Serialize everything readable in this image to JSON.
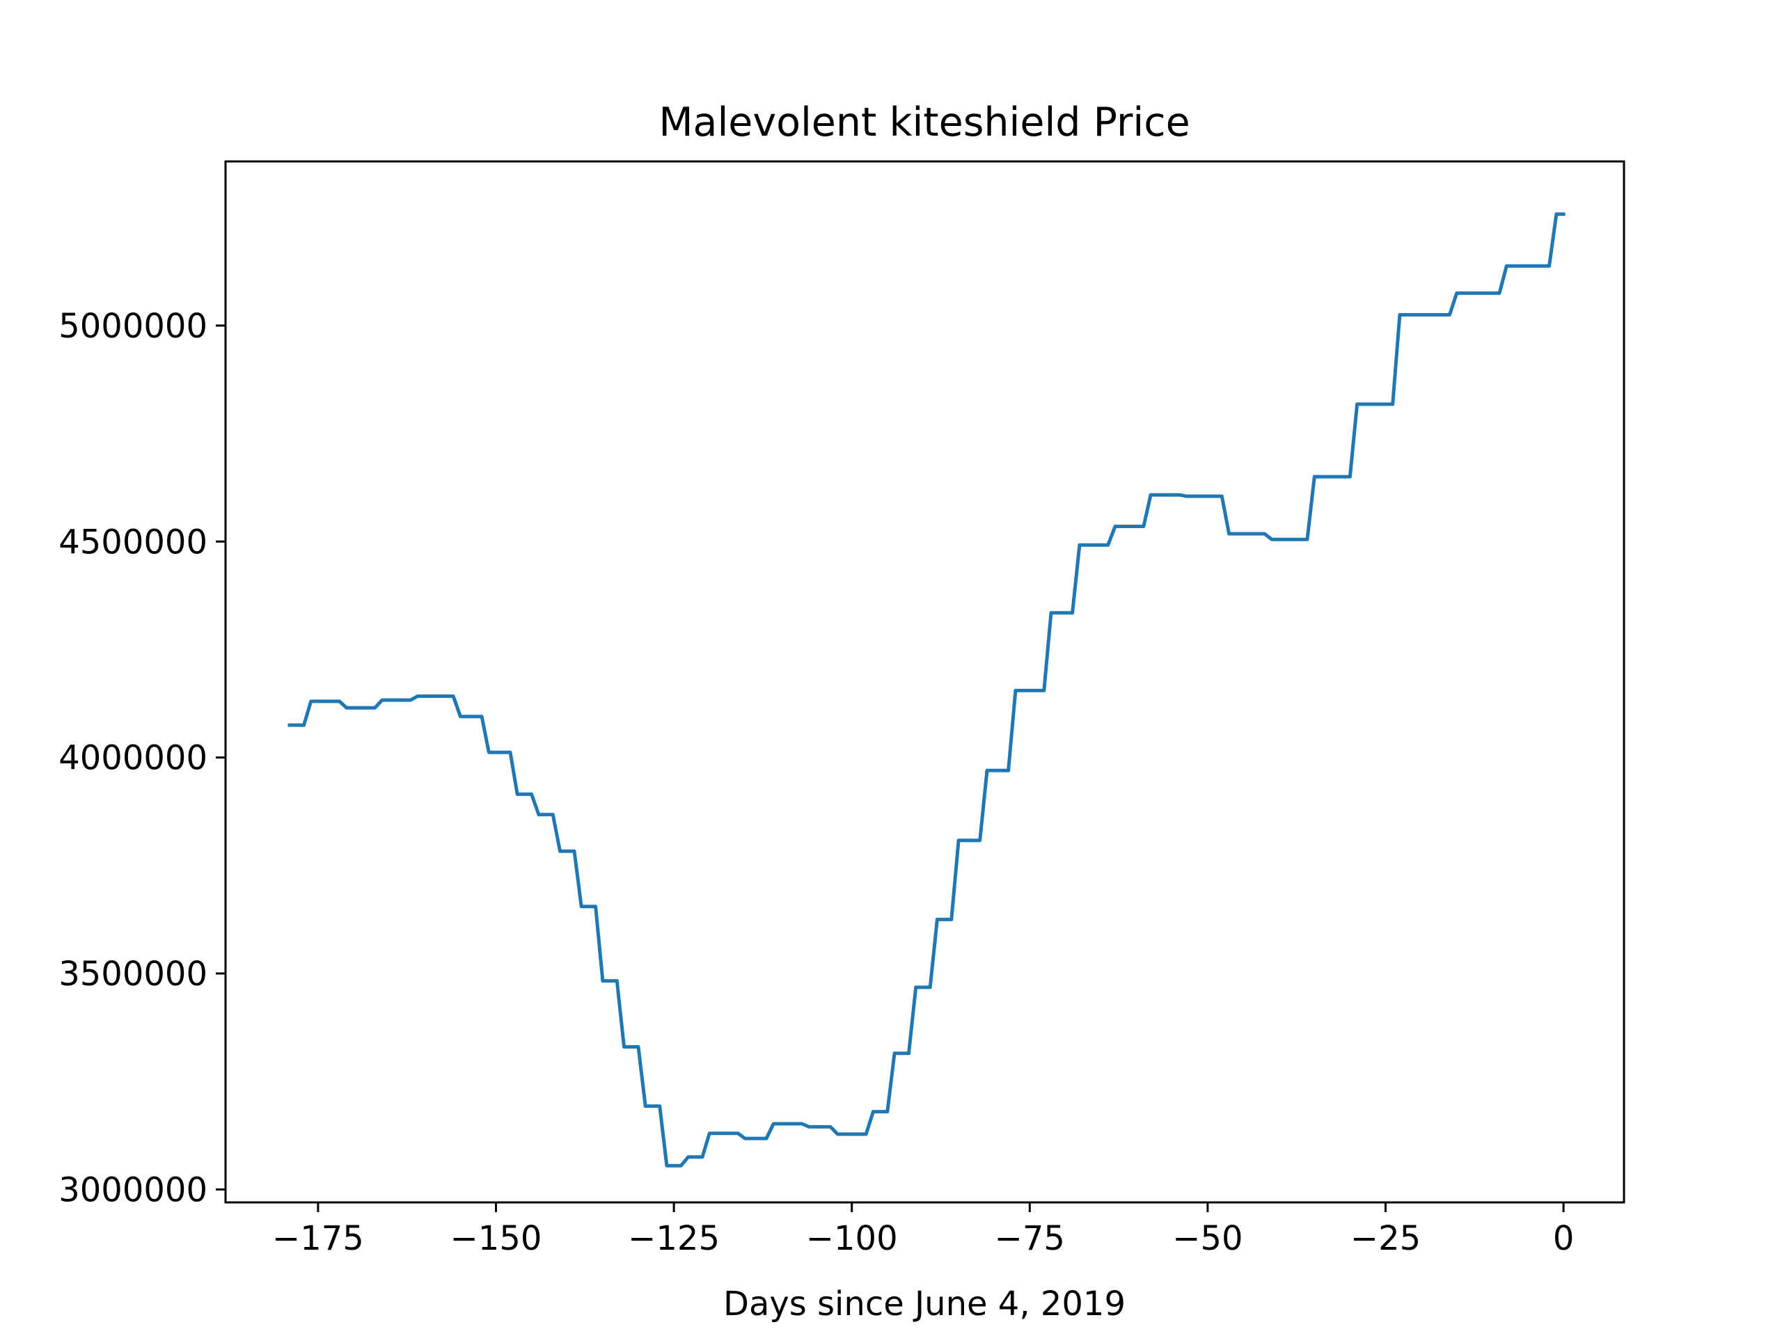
{
  "chart_data": {
    "type": "line",
    "title": "Malevolent kiteshield Price",
    "xlabel": "Days since June 4, 2019",
    "ylabel": "",
    "xlim": [
      -188,
      8.5
    ],
    "ylim": [
      2970000,
      5380000
    ],
    "xticks": [
      -175,
      -150,
      -125,
      -100,
      -75,
      -50,
      -25,
      0
    ],
    "xtick_labels": [
      "−175",
      "−150",
      "−125",
      "−100",
      "−75",
      "−50",
      "−25",
      "0"
    ],
    "yticks": [
      3000000,
      3500000,
      4000000,
      4500000,
      5000000
    ],
    "ytick_labels": [
      "3000000",
      "3500000",
      "4000000",
      "4500000",
      "5000000"
    ],
    "grid": false,
    "legend": "none",
    "series": [
      {
        "color": "#1f77b4",
        "x": [
          -179,
          -177,
          -176,
          -172,
          -171,
          -167,
          -166,
          -162,
          -161,
          -156,
          -155,
          -152,
          -151,
          -148,
          -147,
          -145,
          -144,
          -142,
          -141,
          -139,
          -138,
          -136,
          -135,
          -133,
          -132,
          -130,
          -129,
          -127,
          -126,
          -124,
          -123,
          -121,
          -120,
          -116,
          -115,
          -112,
          -111,
          -107,
          -106,
          -103,
          -102,
          -98,
          -97,
          -95,
          -94,
          -92,
          -91,
          -89,
          -88,
          -86,
          -85,
          -82,
          -81,
          -78,
          -77,
          -73,
          -72,
          -69,
          -68,
          -64,
          -63,
          -59,
          -58,
          -54,
          -53,
          -48,
          -47,
          -42,
          -41,
          -36,
          -35,
          -30,
          -29,
          -24,
          -23,
          -16,
          -15,
          -9,
          -8,
          -2,
          -1,
          0
        ],
        "y": [
          4075000,
          4075000,
          4130000,
          4130000,
          4115000,
          4115000,
          4133000,
          4133000,
          4142000,
          4142000,
          4095000,
          4095000,
          4012000,
          4012000,
          3915000,
          3915000,
          3868000,
          3868000,
          3783000,
          3783000,
          3655000,
          3655000,
          3483000,
          3483000,
          3330000,
          3330000,
          3193000,
          3193000,
          3055000,
          3055000,
          3075000,
          3075000,
          3130000,
          3130000,
          3118000,
          3118000,
          3152000,
          3152000,
          3145000,
          3145000,
          3128000,
          3128000,
          3180000,
          3180000,
          3315000,
          3315000,
          3468000,
          3468000,
          3625000,
          3625000,
          3808000,
          3808000,
          3970000,
          3970000,
          4155000,
          4155000,
          4335000,
          4335000,
          4492000,
          4492000,
          4535000,
          4535000,
          4608000,
          4608000,
          4605000,
          4605000,
          4518000,
          4518000,
          4505000,
          4505000,
          4650000,
          4650000,
          4818000,
          4818000,
          5025000,
          5025000,
          5075000,
          5075000,
          5138000,
          5138000,
          5258000,
          5258000
        ]
      }
    ]
  }
}
